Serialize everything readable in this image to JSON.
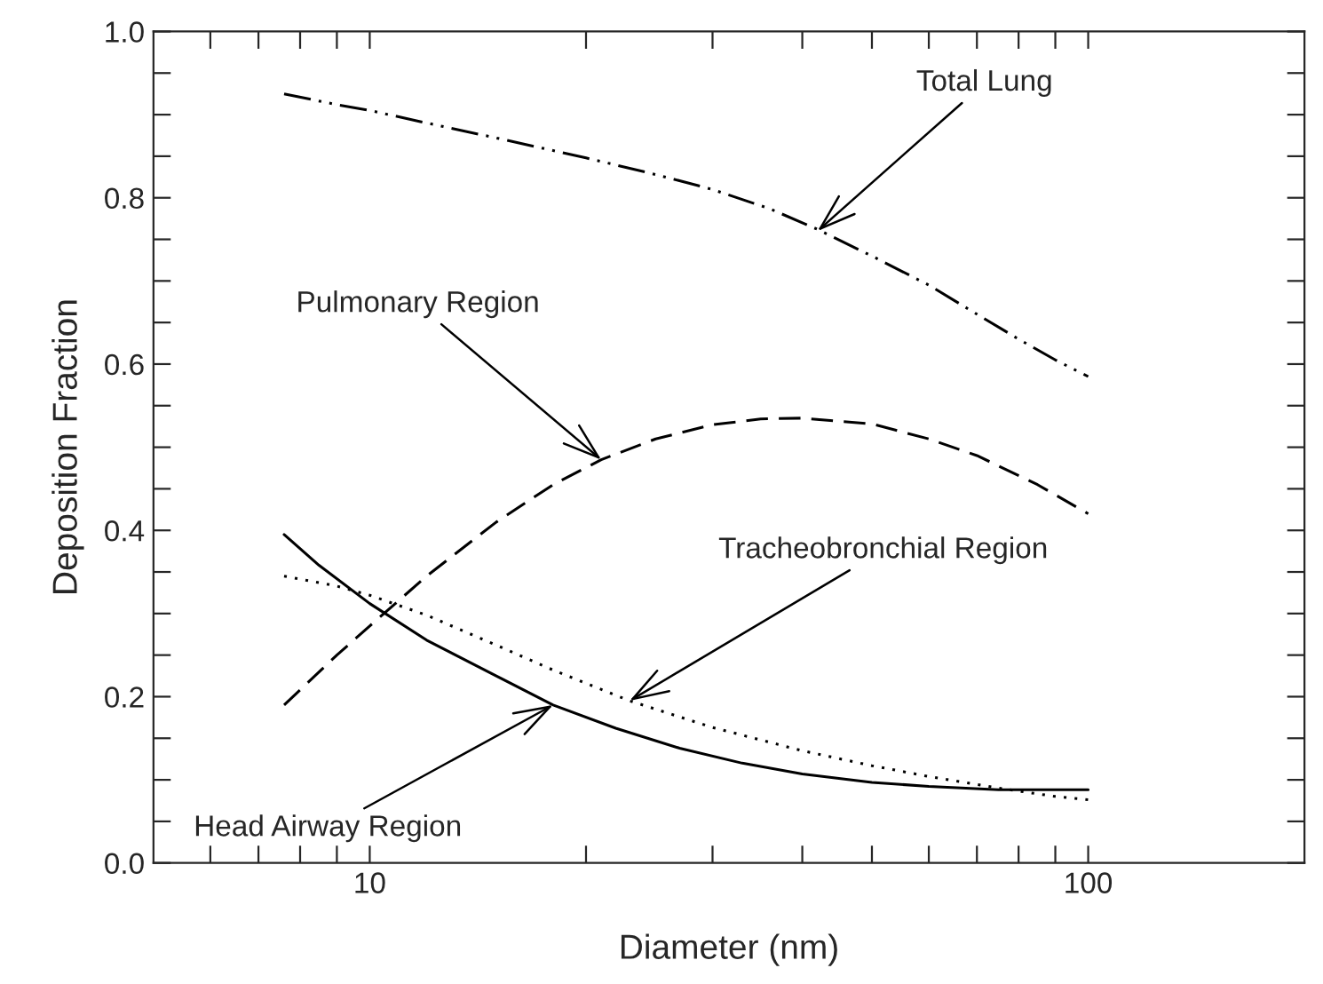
{
  "chart_data": {
    "type": "line",
    "xlabel": "Diameter (nm)",
    "ylabel": "Deposition Fraction",
    "log": "x",
    "grid": false,
    "legend": false,
    "marker": "none",
    "xlim": [
      5,
      200
    ],
    "xticks": [
      {
        "value": 6,
        "label": null
      },
      {
        "value": 7,
        "label": null
      },
      {
        "value": 8,
        "label": null
      },
      {
        "value": 9,
        "label": null
      },
      10,
      {
        "value": 20,
        "label": null
      },
      {
        "value": 30,
        "label": null
      },
      {
        "value": 40,
        "label": null
      },
      {
        "value": 50,
        "label": null
      },
      {
        "value": 60,
        "label": null
      },
      {
        "value": 70,
        "label": null
      },
      {
        "value": 80,
        "label": null
      },
      {
        "value": 90,
        "label": null
      },
      100
    ],
    "ylim": [
      0,
      1
    ],
    "yticks": [
      {
        "value": 0,
        "label": "0.0"
      },
      {
        "value": 0.05,
        "label": null
      },
      {
        "value": 0.1,
        "label": null
      },
      {
        "value": 0.15,
        "label": null
      },
      {
        "value": 0.2,
        "label": "0.2"
      },
      {
        "value": 0.25,
        "label": null
      },
      {
        "value": 0.3,
        "label": null
      },
      {
        "value": 0.35,
        "label": null
      },
      {
        "value": 0.4,
        "label": "0.4"
      },
      {
        "value": 0.45,
        "label": null
      },
      {
        "value": 0.5,
        "label": null
      },
      {
        "value": 0.55,
        "label": null
      },
      {
        "value": 0.6,
        "label": "0.6"
      },
      {
        "value": 0.65,
        "label": null
      },
      {
        "value": 0.7,
        "label": null
      },
      {
        "value": 0.75,
        "label": null
      },
      {
        "value": 0.8,
        "label": "0.8"
      },
      {
        "value": 0.85,
        "label": null
      },
      {
        "value": 0.9,
        "label": null
      },
      {
        "value": 0.95,
        "label": null
      },
      {
        "value": 1,
        "label": "1.0"
      }
    ],
    "series": [
      {
        "color": "#000000",
        "line_style": "dashdotdot",
        "x": [
          7.6,
          9,
          10,
          12,
          15,
          20,
          25,
          30,
          36,
          42,
          50,
          60,
          70,
          80,
          90,
          100
        ],
        "values": [
          0.925,
          0.912,
          0.905,
          0.89,
          0.872,
          0.848,
          0.828,
          0.81,
          0.787,
          0.762,
          0.73,
          0.695,
          0.66,
          0.63,
          0.605,
          0.585
        ]
      },
      {
        "color": "#000000",
        "line_style": "dashed",
        "x": [
          7.6,
          9,
          10,
          12,
          15,
          18,
          21,
          25,
          30,
          35,
          40,
          50,
          60,
          70,
          85,
          100
        ],
        "values": [
          0.19,
          0.25,
          0.285,
          0.345,
          0.41,
          0.455,
          0.485,
          0.51,
          0.527,
          0.534,
          0.535,
          0.528,
          0.51,
          0.49,
          0.455,
          0.42
        ]
      },
      {
        "color": "#000000",
        "line_style": "dotted",
        "x": [
          7.6,
          9,
          10,
          12,
          15,
          18,
          23,
          30,
          40,
          50,
          60,
          75,
          90,
          100
        ],
        "values": [
          0.345,
          0.333,
          0.322,
          0.298,
          0.262,
          0.232,
          0.195,
          0.163,
          0.135,
          0.117,
          0.104,
          0.09,
          0.08,
          0.076
        ]
      },
      {
        "color": "#000000",
        "line_style": "solid",
        "x": [
          7.6,
          8.5,
          10,
          12,
          15,
          18,
          22,
          27,
          33,
          40,
          50,
          60,
          75,
          90,
          100
        ],
        "values": [
          0.395,
          0.358,
          0.312,
          0.268,
          0.225,
          0.19,
          0.162,
          0.138,
          0.12,
          0.107,
          0.097,
          0.092,
          0.088,
          0.088,
          0.088
        ]
      }
    ],
    "annotations": [
      {
        "text": "Total Lung",
        "x": 42,
        "y": 0.76
      },
      {
        "text": "Pulmonary Region",
        "x": 21,
        "y": 0.485
      },
      {
        "text": "Tracheobronchial Region",
        "x": 23,
        "y": 0.195
      },
      {
        "text": "Head Airway Region",
        "x": 18,
        "y": 0.19
      }
    ]
  }
}
